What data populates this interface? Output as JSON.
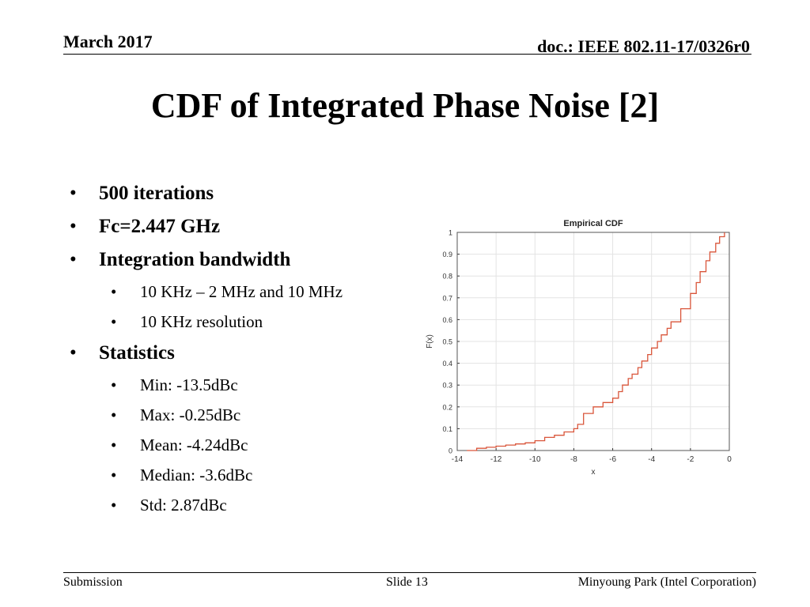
{
  "header": {
    "date": "March 2017",
    "doc_id": "doc.: IEEE 802.11-17/0326r0"
  },
  "slide_title": "CDF of Integrated Phase Noise [2]",
  "bullets": [
    {
      "level": 1,
      "text": "500 iterations"
    },
    {
      "level": 1,
      "text": "Fc=2.447 GHz"
    },
    {
      "level": 1,
      "text": "Integration bandwidth"
    },
    {
      "level": 2,
      "text": "10 KHz – 2 MHz and 10 MHz"
    },
    {
      "level": 2,
      "text": "10 KHz resolution"
    },
    {
      "level": 1,
      "text": "Statistics"
    },
    {
      "level": 2,
      "text": "Min: -13.5dBc"
    },
    {
      "level": 2,
      "text": "Max: -0.25dBc"
    },
    {
      "level": 2,
      "text": "Mean: -4.24dBc"
    },
    {
      "level": 2,
      "text": "Median: -3.6dBc"
    },
    {
      "level": 2,
      "text": "Std: 2.87dBc"
    }
  ],
  "footer": {
    "left": "Submission",
    "center": "Slide 13",
    "right": "Minyoung Park (Intel Corporation)"
  },
  "chart_data": {
    "type": "line",
    "title": "Empirical CDF",
    "xlabel": "x",
    "ylabel": "F(x)",
    "xlim": [
      -14,
      0
    ],
    "ylim": [
      0,
      1
    ],
    "xticks": [
      "-14",
      "-12",
      "-10",
      "-8",
      "-6",
      "-4",
      "-2",
      "0"
    ],
    "yticks": [
      "0",
      "0.1",
      "0.2",
      "0.3",
      "0.4",
      "0.5",
      "0.6",
      "0.7",
      "0.8",
      "0.9",
      "1"
    ],
    "grid": true,
    "series": [
      {
        "color": "#d9553a",
        "x": [
          -13.5,
          -13.0,
          -12.5,
          -12.0,
          -11.5,
          -11.0,
          -10.5,
          -10.0,
          -9.5,
          -9.0,
          -8.5,
          -8.0,
          -7.8,
          -7.5,
          -7.0,
          -6.5,
          -6.0,
          -5.7,
          -5.5,
          -5.2,
          -5.0,
          -4.7,
          -4.5,
          -4.2,
          -4.0,
          -3.7,
          -3.5,
          -3.2,
          -3.0,
          -2.5,
          -2.0,
          -1.7,
          -1.5,
          -1.2,
          -1.0,
          -0.7,
          -0.5,
          -0.25
        ],
        "y": [
          0.0,
          0.01,
          0.015,
          0.02,
          0.025,
          0.03,
          0.035,
          0.045,
          0.06,
          0.07,
          0.085,
          0.1,
          0.12,
          0.17,
          0.2,
          0.22,
          0.24,
          0.27,
          0.3,
          0.33,
          0.35,
          0.38,
          0.41,
          0.44,
          0.47,
          0.5,
          0.53,
          0.56,
          0.59,
          0.65,
          0.72,
          0.77,
          0.82,
          0.87,
          0.91,
          0.95,
          0.98,
          1.0
        ]
      }
    ]
  }
}
